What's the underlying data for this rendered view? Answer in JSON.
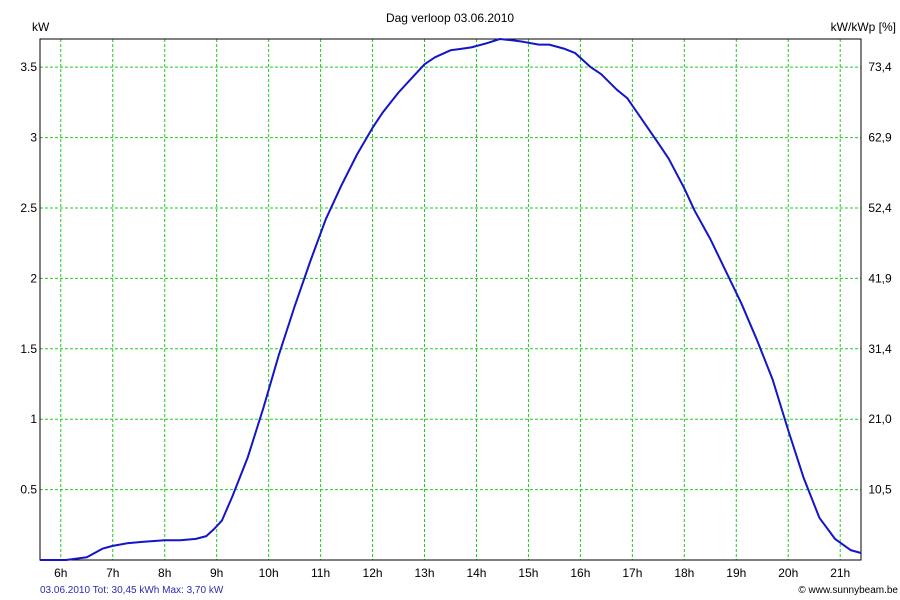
{
  "chart_data": {
    "type": "line",
    "title": "Dag  verloop 03.06.2010",
    "ylabel_left": "kW",
    "ylabel_right": "kW/kWp [%]",
    "x_ticks": [
      "6h",
      "7h",
      "8h",
      "9h",
      "10h",
      "11h",
      "12h",
      "13h",
      "14h",
      "15h",
      "16h",
      "17h",
      "18h",
      "19h",
      "20h",
      "21h"
    ],
    "x_tick_hours": [
      6,
      7,
      8,
      9,
      10,
      11,
      12,
      13,
      14,
      15,
      16,
      17,
      18,
      19,
      20,
      21
    ],
    "xlim": [
      5.6,
      21.4
    ],
    "y_ticks_left": [
      "0.5",
      "1",
      "1.5",
      "2",
      "2.5",
      "3",
      "3.5"
    ],
    "y_tick_values_left": [
      0.5,
      1,
      1.5,
      2,
      2.5,
      3,
      3.5
    ],
    "y_ticks_right": [
      "10,5",
      "21,0",
      "31,4",
      "41,9",
      "52,4",
      "62,9",
      "73,4"
    ],
    "ylim": [
      0,
      3.7
    ],
    "grid": true,
    "colors": {
      "line": "#1414c8",
      "grid": "#22cc22",
      "footer_left": "#2a2ab4",
      "text": "#000000"
    },
    "series": [
      {
        "x": [
          5.6,
          6.1,
          6.5,
          6.8,
          7.0,
          7.3,
          7.6,
          8.0,
          8.3,
          8.6,
          8.8,
          8.95,
          9.1,
          9.3,
          9.6,
          9.9,
          10.2,
          10.5,
          10.8,
          11.1,
          11.4,
          11.7,
          12.0,
          12.2,
          12.5,
          12.8,
          13.0,
          13.2,
          13.5,
          13.7,
          13.9,
          14.2,
          14.45,
          14.7,
          14.9,
          15.2,
          15.4,
          15.7,
          15.9,
          16.2,
          16.4,
          16.7,
          16.9,
          17.2,
          17.5,
          17.7,
          18.0,
          18.2,
          18.5,
          18.8,
          19.1,
          19.4,
          19.7,
          20.0,
          20.3,
          20.6,
          20.9,
          21.2,
          21.4
        ],
        "values": [
          0.0,
          0.0,
          0.02,
          0.08,
          0.1,
          0.12,
          0.13,
          0.14,
          0.14,
          0.15,
          0.17,
          0.22,
          0.28,
          0.45,
          0.73,
          1.08,
          1.46,
          1.8,
          2.12,
          2.42,
          2.66,
          2.88,
          3.07,
          3.18,
          3.32,
          3.44,
          3.52,
          3.57,
          3.62,
          3.63,
          3.64,
          3.67,
          3.7,
          3.69,
          3.68,
          3.66,
          3.66,
          3.63,
          3.6,
          3.5,
          3.45,
          3.34,
          3.28,
          3.12,
          2.96,
          2.85,
          2.64,
          2.48,
          2.28,
          2.05,
          1.82,
          1.56,
          1.28,
          0.92,
          0.58,
          0.3,
          0.15,
          0.07,
          0.05
        ]
      }
    ]
  },
  "footer": {
    "left": "03.06.2010 Tot: 30,45 kWh Max: 3,70 kW",
    "right": "© www.sunnybeam.be"
  }
}
